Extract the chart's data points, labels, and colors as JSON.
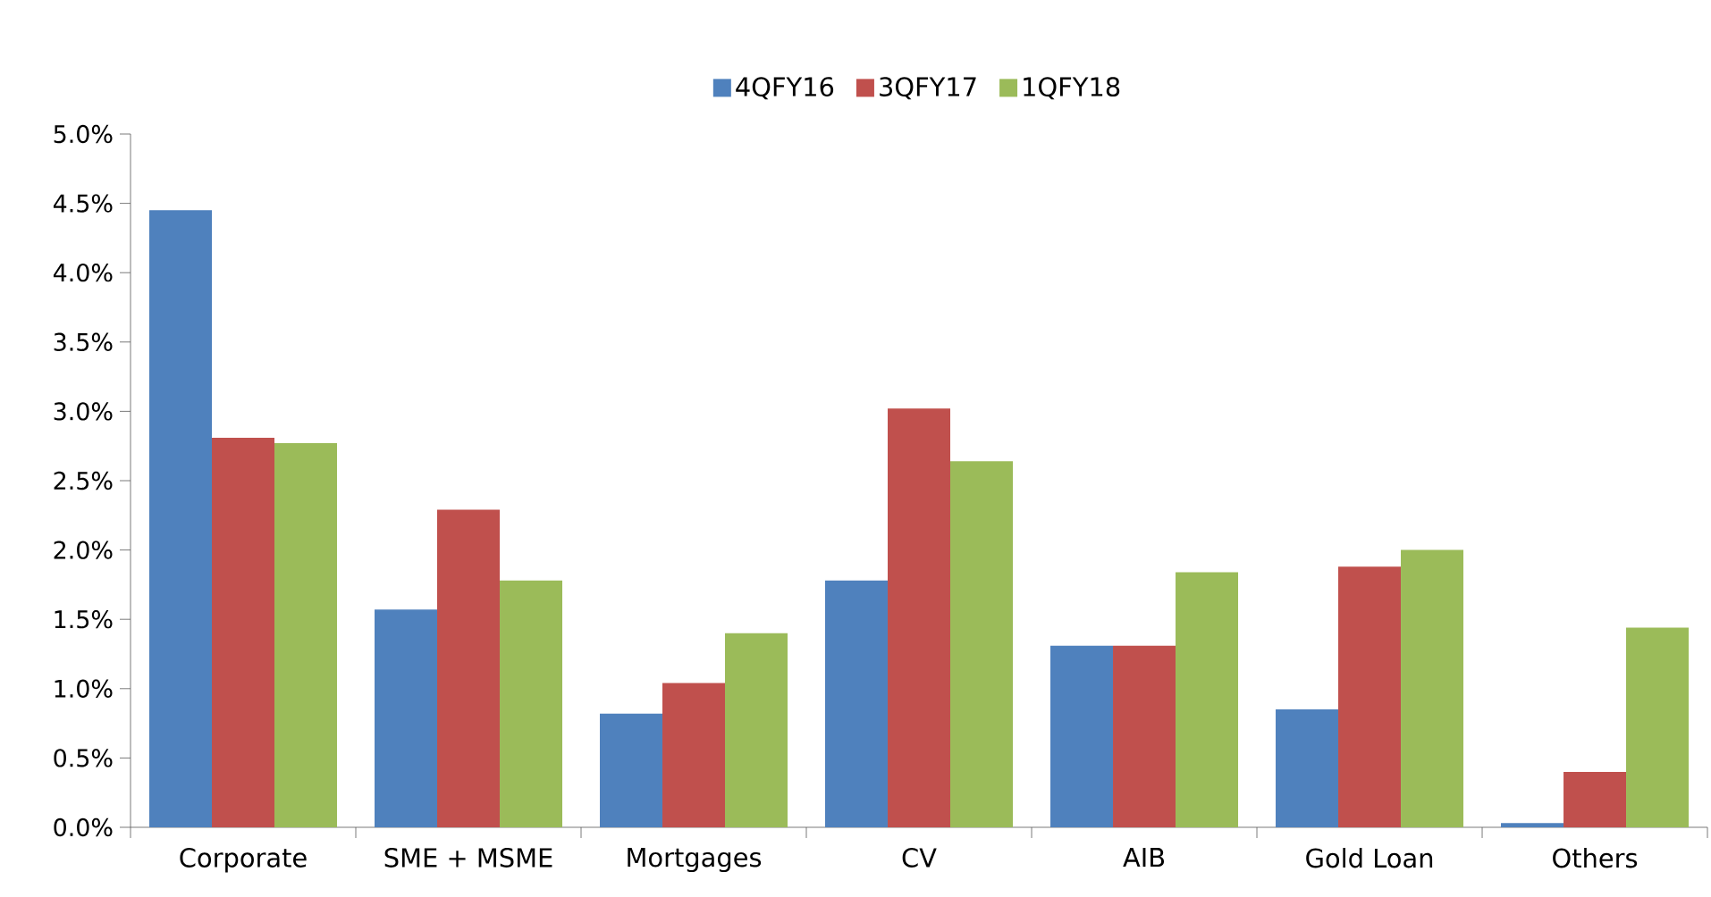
{
  "chart_data": {
    "type": "bar",
    "categories": [
      "Corporate",
      "SME + MSME",
      "Mortgages",
      "CV",
      "AIB",
      "Gold Loan",
      "Others"
    ],
    "series": [
      {
        "name": "4QFY16",
        "color": "#4f81bd",
        "values": [
          4.45,
          1.57,
          0.82,
          1.78,
          1.31,
          0.85,
          0.03
        ]
      },
      {
        "name": "3QFY17",
        "color": "#c0504d",
        "values": [
          2.81,
          2.29,
          1.04,
          3.02,
          1.31,
          1.88,
          0.4
        ]
      },
      {
        "name": "1QFY18",
        "color": "#9bbb59",
        "values": [
          2.77,
          1.78,
          1.4,
          2.64,
          1.84,
          2.0,
          1.44
        ]
      }
    ],
    "ylim": [
      0,
      5
    ],
    "yticks": [
      {
        "value": 0,
        "label": "0.0%"
      },
      {
        "value": 0.5,
        "label": "0.5%"
      },
      {
        "value": 1,
        "label": "1.0%"
      },
      {
        "value": 1.5,
        "label": "1.5%"
      },
      {
        "value": 2,
        "label": "2.0%"
      },
      {
        "value": 2.5,
        "label": "2.5%"
      },
      {
        "value": 3,
        "label": "3.0%"
      },
      {
        "value": 3.5,
        "label": "3.5%"
      },
      {
        "value": 4,
        "label": "4.0%"
      },
      {
        "value": 4.5,
        "label": "4.5%"
      },
      {
        "value": 5,
        "label": "5.0%"
      }
    ],
    "grid": false,
    "legend": "top"
  }
}
